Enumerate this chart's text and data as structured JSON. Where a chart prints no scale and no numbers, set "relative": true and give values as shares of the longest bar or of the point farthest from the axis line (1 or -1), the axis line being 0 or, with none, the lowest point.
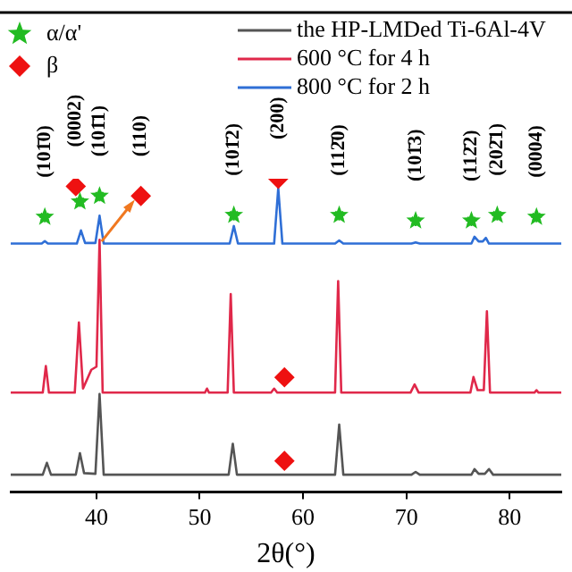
{
  "chart_data": {
    "type": "line",
    "relative": true,
    "xlabel": "2θ(°)",
    "xlim": [
      31.7,
      85
    ],
    "xticks": [
      40,
      50,
      60,
      70,
      80
    ],
    "legend": "top",
    "grid": false,
    "series": [
      {
        "name": "the HP-LMDed Ti-6Al-4V",
        "color": "#555555",
        "type": "line",
        "marker": "none",
        "line_style": "solid",
        "x": [
          31.7,
          34.8,
          35.2,
          35.6,
          38.0,
          38.4,
          38.8,
          39.9,
          40.3,
          40.7,
          52.8,
          53.2,
          53.6,
          63.1,
          63.5,
          63.9,
          70.5,
          70.9,
          71.3,
          76.3,
          76.6,
          77.0,
          77.6,
          78.0,
          78.4,
          85
        ],
        "values": [
          0.055,
          0.055,
          0.093,
          0.055,
          0.055,
          0.124,
          0.06,
          0.058,
          0.313,
          0.055,
          0.055,
          0.154,
          0.055,
          0.055,
          0.215,
          0.055,
          0.055,
          0.064,
          0.055,
          0.055,
          0.073,
          0.058,
          0.058,
          0.073,
          0.055,
          0.055
        ]
      },
      {
        "name": "600 °C for 4 h",
        "color": "#e0284a",
        "type": "line",
        "marker": "none",
        "line_style": "solid",
        "x": [
          31.7,
          34.8,
          35.1,
          35.4,
          37.9,
          38.3,
          38.7,
          39.5,
          40.0,
          40.3,
          40.6,
          50.5,
          50.7,
          50.9,
          52.7,
          53.0,
          53.3,
          56.9,
          57.2,
          57.5,
          63.1,
          63.4,
          63.7,
          70.4,
          70.8,
          71.2,
          76.2,
          76.5,
          76.9,
          77.5,
          77.8,
          78.1,
          82.4,
          82.6,
          82.8,
          85
        ],
        "values": [
          0.317,
          0.317,
          0.402,
          0.317,
          0.317,
          0.541,
          0.33,
          0.39,
          0.4,
          0.805,
          0.317,
          0.317,
          0.33,
          0.317,
          0.317,
          0.632,
          0.317,
          0.317,
          0.33,
          0.317,
          0.317,
          0.673,
          0.317,
          0.317,
          0.343,
          0.317,
          0.317,
          0.367,
          0.325,
          0.325,
          0.577,
          0.317,
          0.317,
          0.325,
          0.317,
          0.317
        ]
      },
      {
        "name": "800 °C for 2 h",
        "color": "#2f6fd6",
        "type": "line",
        "marker": "none",
        "line_style": "solid",
        "x": [
          31.7,
          34.7,
          35.0,
          35.3,
          38.1,
          38.5,
          38.9,
          39.9,
          40.3,
          40.7,
          52.9,
          53.3,
          53.7,
          57.2,
          57.6,
          58.0,
          63.1,
          63.5,
          63.9,
          70.5,
          70.9,
          71.3,
          76.3,
          76.6,
          77.0,
          77.4,
          77.7,
          78.0,
          85
        ],
        "values": [
          0.793,
          0.793,
          0.801,
          0.793,
          0.793,
          0.835,
          0.795,
          0.795,
          0.882,
          0.793,
          0.793,
          0.849,
          0.793,
          0.793,
          0.97,
          0.793,
          0.793,
          0.803,
          0.793,
          0.793,
          0.797,
          0.793,
          0.793,
          0.815,
          0.8,
          0.8,
          0.811,
          0.793,
          0.793
        ]
      },
      {
        "name": "α/α'",
        "color": "#22bb22",
        "type": "scatter",
        "marker": "star",
        "x": [
          35.0,
          38.4,
          40.3,
          53.3,
          63.5,
          70.9,
          76.3,
          78.8,
          82.6
        ],
        "values": [
          0.878,
          0.927,
          0.945,
          0.884,
          0.884,
          0.866,
          0.866,
          0.884,
          0.878
        ]
      },
      {
        "name": "β",
        "color": "#ee1111",
        "type": "scatter",
        "marker": "diamond",
        "x": [
          38.0,
          44.3,
          57.6,
          58.2,
          58.2
        ],
        "values": [
          0.976,
          0.945,
          1.0,
          0.366,
          0.099
        ]
      }
    ],
    "annotations": [
      {
        "text": "(101̄0)",
        "x": 35.0,
        "y": 0.878
      },
      {
        "text": "(0002)",
        "x": 38.0,
        "y": 0.976
      },
      {
        "text": "(101̄1)",
        "x": 40.3,
        "y": 0.945
      },
      {
        "text": "(110)",
        "x": 44.3,
        "y": 0.945
      },
      {
        "text": "(101̄2)",
        "x": 53.3,
        "y": 0.884
      },
      {
        "text": "(200)",
        "x": 57.6,
        "y": 1.0
      },
      {
        "text": "(112̄0)",
        "x": 63.5,
        "y": 0.884
      },
      {
        "text": "(101̄3)",
        "x": 70.9,
        "y": 0.866
      },
      {
        "text": "(112̄2)",
        "x": 76.3,
        "y": 0.866
      },
      {
        "text": "(202̄1)",
        "x": 78.8,
        "y": 0.884
      },
      {
        "text": "(0004)",
        "x": 82.6,
        "y": 0.878
      }
    ]
  }
}
